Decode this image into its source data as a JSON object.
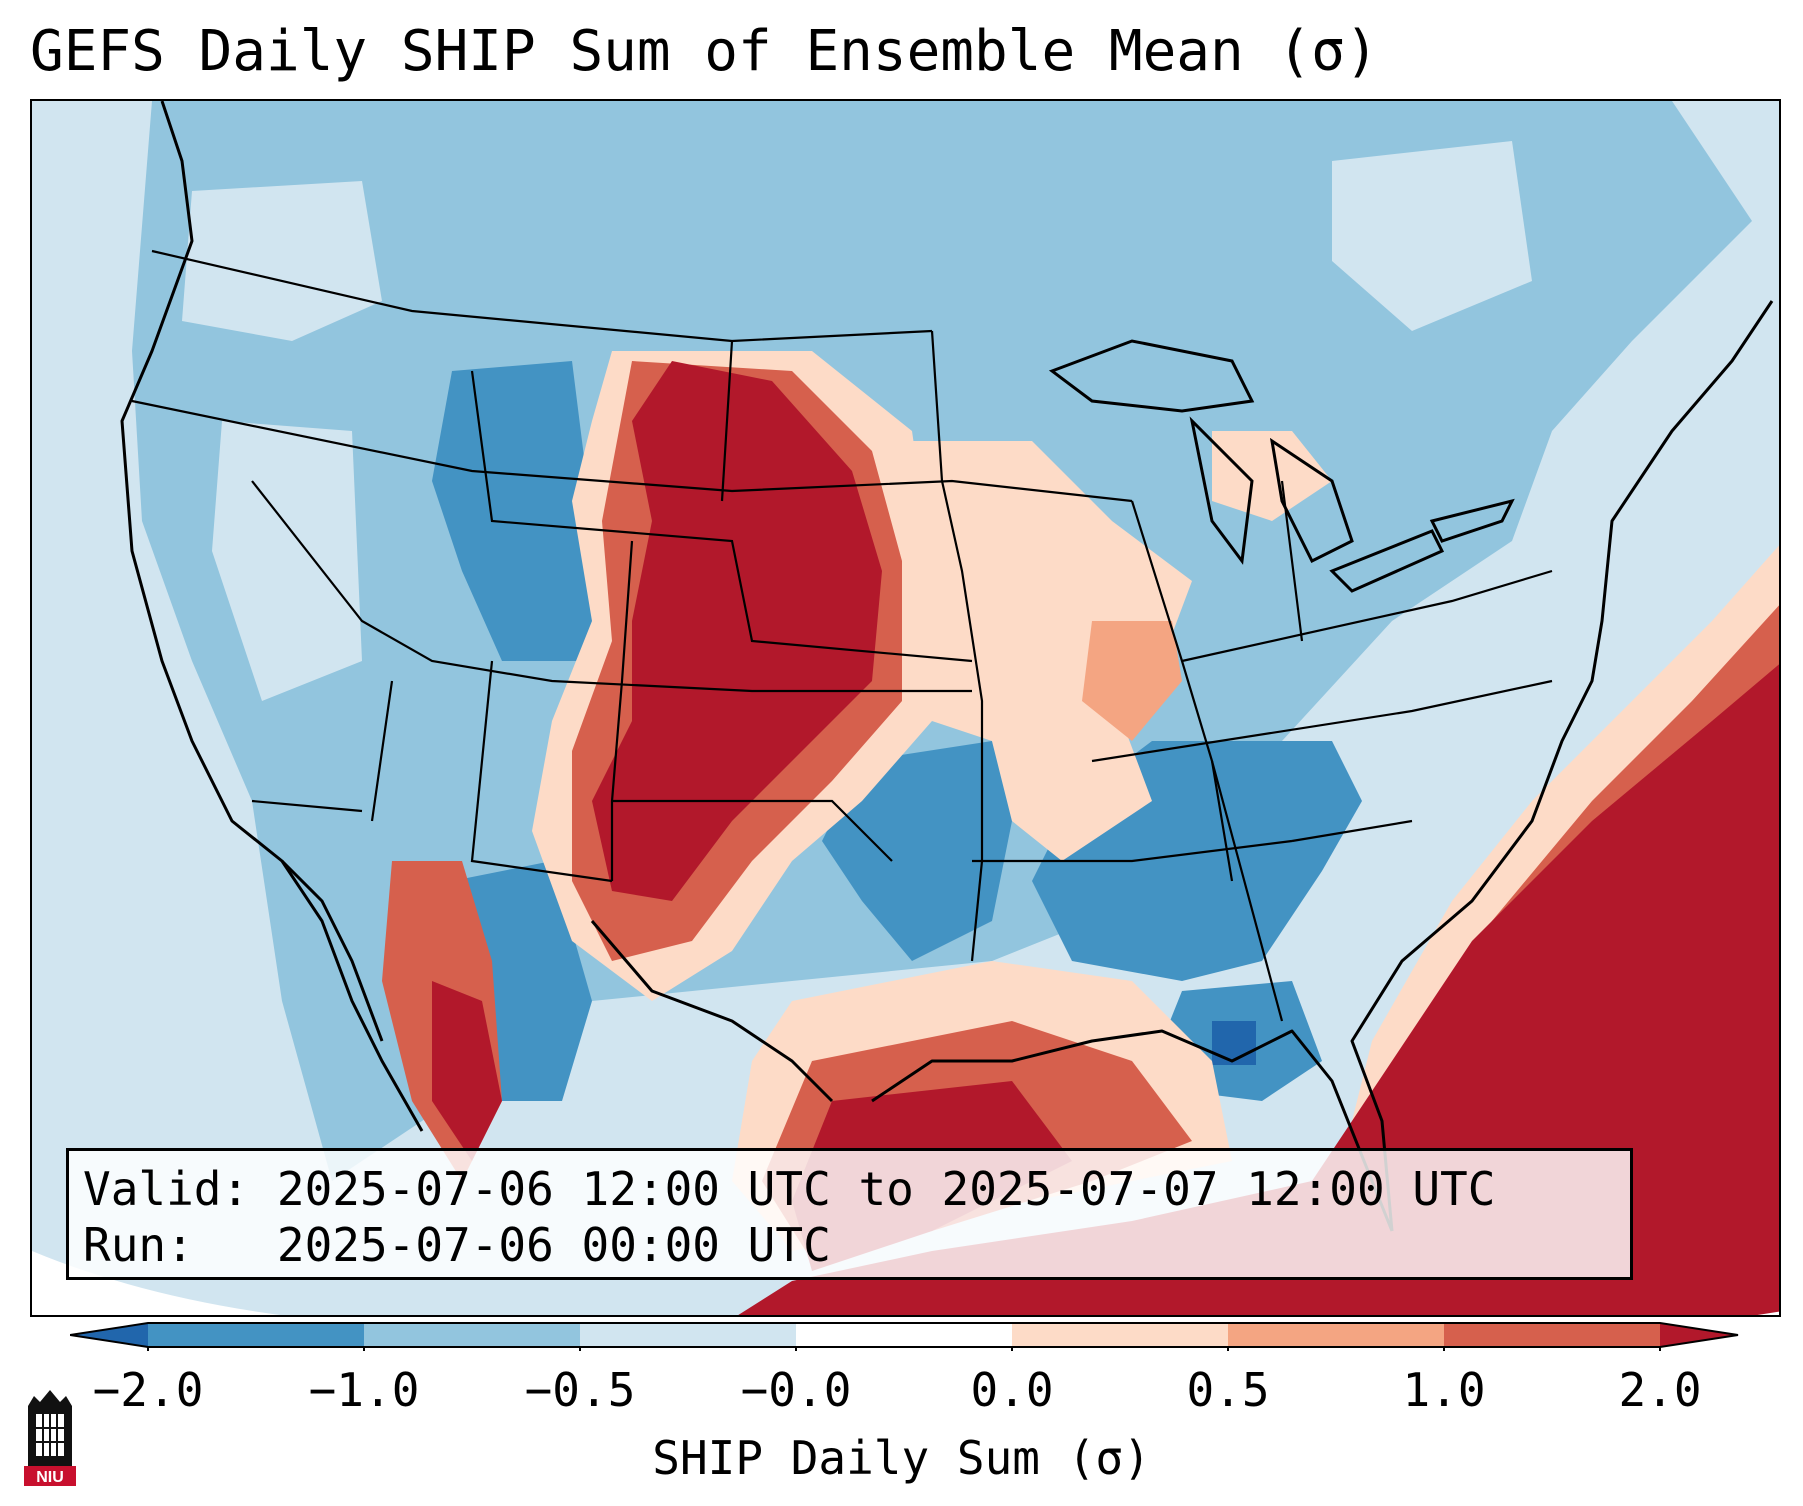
{
  "title": "GEFS Daily SHIP Sum of Ensemble Mean (σ)",
  "info": {
    "valid_label": "Valid:",
    "valid_value": "2025-07-06 12:00 UTC to 2025-07-07 12:00 UTC",
    "run_label": "Run:",
    "run_value": "2025-07-06 00:00 UTC"
  },
  "colorbar": {
    "label": "SHIP Daily Sum (σ)",
    "ticks": [
      "−2.0",
      "−1.0",
      "−0.5",
      "−0.0",
      "0.0",
      "0.5",
      "1.0",
      "2.0"
    ],
    "bins": [
      {
        "range": "<-2.0 (extend)",
        "color": "#2166ac"
      },
      {
        "range": "-2.0 to -1.0",
        "color": "#4393c3"
      },
      {
        "range": "-1.0 to -0.5",
        "color": "#92c5de"
      },
      {
        "range": "-0.5 to -0.0",
        "color": "#d1e5f0"
      },
      {
        "range": "-0.0 to 0.0",
        "color": "#ffffff"
      },
      {
        "range": "0.0 to 0.5",
        "color": "#fddbc7"
      },
      {
        "range": "0.5 to 1.0",
        "color": "#f4a582"
      },
      {
        "range": "1.0 to 2.0",
        "color": "#d6604d"
      },
      {
        "range": ">2.0 (extend)",
        "color": "#b2182b"
      }
    ]
  },
  "logo": {
    "text": "NIU",
    "colors": {
      "primary": "#c8102e",
      "secondary": "#000000"
    }
  },
  "map": {
    "region": "Continental United States",
    "ocean_color": "#d1e5f0",
    "border_color": "#000000"
  }
}
